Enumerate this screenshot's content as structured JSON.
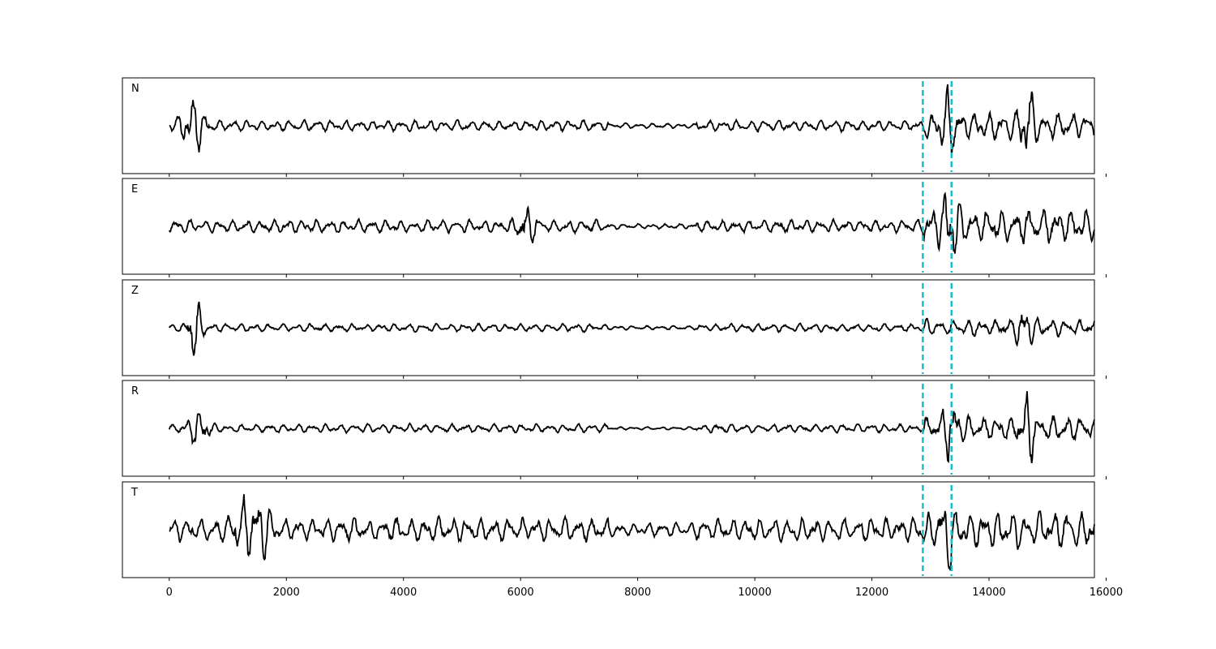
{
  "chart_data": {
    "type": "line",
    "xlim": [
      -800,
      15800
    ],
    "xticks": [
      "0",
      "2000",
      "4000",
      "6000",
      "8000",
      "10000",
      "12000",
      "14000",
      "16000"
    ],
    "xtick_values": [
      0,
      2000,
      4000,
      6000,
      8000,
      10000,
      12000,
      14000,
      16000
    ],
    "x_range": [
      0,
      15800
    ],
    "grid": false,
    "line_color": "#000000",
    "marker_color": "#17becf",
    "markers": [
      12870,
      13360
    ],
    "panels": [
      {
        "label": "N",
        "baseline": 0.5,
        "amplitude": 0.38,
        "bursts": [
          {
            "at": 400,
            "width": 200,
            "gain": 0.9
          },
          {
            "at": 13300,
            "width": 120,
            "gain": 1.0
          },
          {
            "at": 14650,
            "width": 120,
            "gain": 1.0
          }
        ],
        "noise": {
          "before": 0.18,
          "quiet": 0.08,
          "after": 0.45
        }
      },
      {
        "label": "E",
        "baseline": 0.5,
        "amplitude": 0.4,
        "bursts": [
          {
            "at": 6100,
            "width": 150,
            "gain": 0.6
          },
          {
            "at": 13350,
            "width": 140,
            "gain": 1.0
          }
        ],
        "noise": {
          "before": 0.2,
          "quiet": 0.08,
          "after": 0.55
        }
      },
      {
        "label": "Z",
        "baseline": 0.5,
        "amplitude": 0.42,
        "bursts": [
          {
            "at": 430,
            "width": 120,
            "gain": 1.0
          },
          {
            "at": 14600,
            "width": 150,
            "gain": 0.5
          }
        ],
        "noise": {
          "before": 0.12,
          "quiet": 0.06,
          "after": 0.25
        }
      },
      {
        "label": "R",
        "baseline": 0.5,
        "amplitude": 0.38,
        "bursts": [
          {
            "at": 500,
            "width": 180,
            "gain": 0.6
          },
          {
            "at": 13350,
            "width": 130,
            "gain": 0.9
          },
          {
            "at": 14650,
            "width": 120,
            "gain": 1.0
          }
        ],
        "noise": {
          "before": 0.14,
          "quiet": 0.05,
          "after": 0.4
        }
      },
      {
        "label": "T",
        "baseline": 0.5,
        "amplitude": 0.42,
        "bursts": [
          {
            "at": 1400,
            "width": 300,
            "gain": 0.8
          },
          {
            "at": 13280,
            "width": 100,
            "gain": 1.0
          }
        ],
        "noise": {
          "before": 0.35,
          "quiet": 0.2,
          "after": 0.55
        }
      }
    ]
  }
}
